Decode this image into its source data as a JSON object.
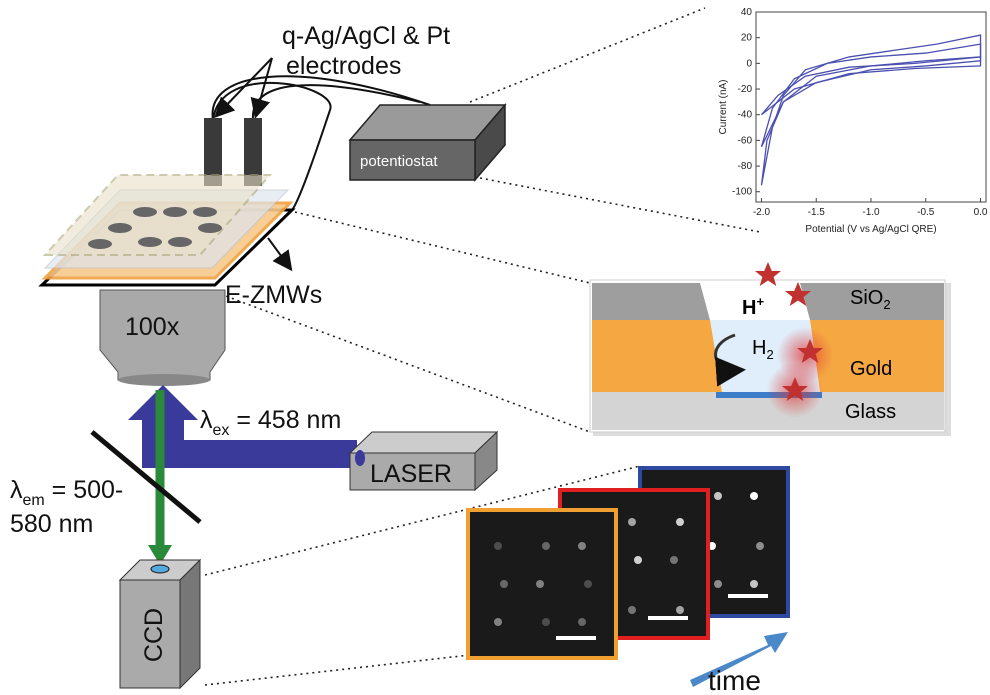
{
  "labels": {
    "electrodes": [
      "q-Ag/AgCl & Pt",
      "electrodes"
    ],
    "potentiostat": "potentiostat",
    "ezmw": "E-ZMWs",
    "objective": "100x",
    "excitation": {
      "symbol": "λ",
      "sub": "ex",
      "text": " = 458 nm"
    },
    "laser": "LASER",
    "emission": {
      "symbol": "λ",
      "sub": "em",
      "text": [
        " = 500-",
        "580 nm"
      ]
    },
    "ccd": "CCD",
    "time": "time"
  },
  "cross_section": {
    "sio2": {
      "text": "SiO",
      "sub": "2"
    },
    "proton": {
      "text": "H",
      "sup": "+"
    },
    "hydrogen": {
      "text": "H",
      "sub": "2"
    },
    "gold": "Gold",
    "glass": "Glass"
  },
  "chart_data": {
    "type": "line",
    "xlabel": "Potential (V vs Ag/AgCl QRE)",
    "ylabel": "Current (nA)",
    "xlim": [
      -2.05,
      0.05
    ],
    "ylim": [
      -108,
      40
    ],
    "xticks": [
      {
        "value": -2,
        "label": "-2.0"
      },
      -1.5,
      {
        "value": -1,
        "label": "-1.0"
      },
      -0.5,
      {
        "value": 0,
        "label": "0.0"
      }
    ],
    "yticks": [
      40,
      20,
      0,
      -20,
      -40,
      -60,
      -80,
      -100
    ],
    "series": [
      {
        "color": "#4a4fb0",
        "x": [
          -2.0,
          -1.9,
          -1.8,
          -1.6,
          -1.2,
          -0.8,
          -0.4,
          0.0,
          0.0,
          -0.5,
          -1.0,
          -1.5,
          -1.8,
          -1.95,
          -2.0
        ],
        "values": [
          -95,
          -50,
          -25,
          -5,
          5,
          10,
          15,
          22,
          5,
          2,
          -2,
          -10,
          -30,
          -60,
          -95
        ]
      },
      {
        "color": "#4a4fb0",
        "x": [
          -2.0,
          -1.9,
          -1.7,
          -1.4,
          -1.0,
          -0.5,
          0.0,
          0.0,
          -0.5,
          -1.0,
          -1.5,
          -1.8,
          -2.0
        ],
        "values": [
          -65,
          -35,
          -12,
          0,
          5,
          8,
          15,
          2,
          -2,
          -5,
          -15,
          -30,
          -65
        ]
      },
      {
        "color": "#4a4fb0",
        "x": [
          -2.0,
          -1.85,
          -1.6,
          -1.2,
          -0.6,
          0.0,
          0.0,
          -0.6,
          -1.2,
          -1.7,
          -2.0
        ],
        "values": [
          -40,
          -25,
          -10,
          -3,
          0,
          5,
          -2,
          -4,
          -8,
          -20,
          -40
        ]
      }
    ]
  }
}
